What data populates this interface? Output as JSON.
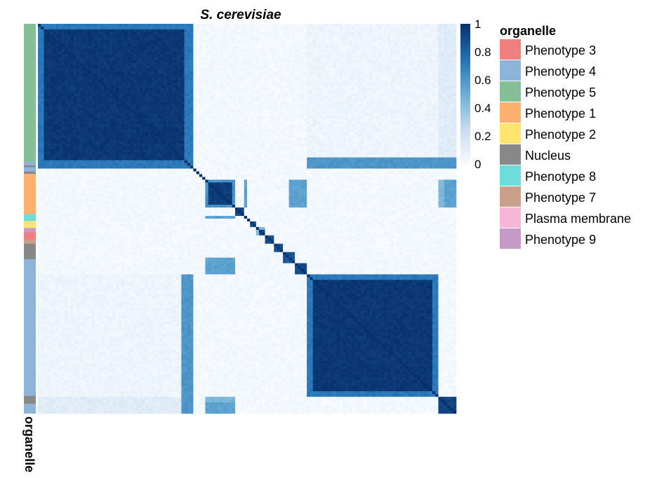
{
  "chart_data": {
    "type": "heatmap",
    "title": "S. cerevisiae",
    "color_scale": {
      "min": 0,
      "max": 1,
      "ticks": [
        {
          "value": 1,
          "label": "1"
        },
        {
          "value": 0.8,
          "label": "0.8"
        },
        {
          "value": 0.6,
          "label": "0.6"
        },
        {
          "value": 0.4,
          "label": "0.4"
        },
        {
          "value": 0.2,
          "label": "0.2"
        },
        {
          "value": 0,
          "label": "0"
        }
      ],
      "low_color": "#f7fbff",
      "high_color": "#08306b"
    },
    "annotation": {
      "name": "organelle",
      "legend": [
        {
          "label": "Phenotype 3",
          "color": "#f08080"
        },
        {
          "label": "Phenotype 4",
          "color": "#8fb4d9"
        },
        {
          "label": "Phenotype 5",
          "color": "#85bf95"
        },
        {
          "label": "Phenotype 1",
          "color": "#ffb06f"
        },
        {
          "label": "Phenotype 2",
          "color": "#ffe470"
        },
        {
          "label": "Nucleus",
          "color": "#888888"
        },
        {
          "label": "Phenotype 8",
          "color": "#6fdcdc"
        },
        {
          "label": "Phenotype 7",
          "color": "#c9a08a"
        },
        {
          "label": "Plasma membrane",
          "color": "#f6b6d8"
        },
        {
          "label": "Phenotype 9",
          "color": "#c59ac9"
        }
      ],
      "row_groups": [
        {
          "label": "Phenotype 5",
          "fraction": 0.354
        },
        {
          "label": "Phenotype 4",
          "fraction": 0.009
        },
        {
          "label": "Nucleus",
          "fraction": 0.005
        },
        {
          "label": "Phenotype 4",
          "fraction": 0.011
        },
        {
          "label": "Nucleus",
          "fraction": 0.006
        },
        {
          "label": "Phenotype 1",
          "fraction": 0.103
        },
        {
          "label": "Phenotype 8",
          "fraction": 0.018
        },
        {
          "label": "Phenotype 2",
          "fraction": 0.018
        },
        {
          "label": "Phenotype 9",
          "fraction": 0.011
        },
        {
          "label": "Phenotype 3",
          "fraction": 0.02
        },
        {
          "label": "Phenotype 7",
          "fraction": 0.009
        },
        {
          "label": "Nucleus",
          "fraction": 0.04
        },
        {
          "label": "Phenotype 4",
          "fraction": 0.351
        },
        {
          "label": "Nucleus",
          "fraction": 0.02
        },
        {
          "label": "Phenotype 4",
          "fraction": 0.025
        }
      ]
    },
    "blocks": [
      {
        "start": 0.0,
        "end": 0.368,
        "value": 0.97,
        "edge": 0.72
      },
      {
        "start": 0.402,
        "end": 0.468,
        "value": 0.95,
        "edge": 0.6
      },
      {
        "start": 0.47,
        "end": 0.495,
        "value": 0.92,
        "edge": 0.5
      },
      {
        "start": 0.505,
        "end": 0.525,
        "value": 0.9,
        "edge": 0.45
      },
      {
        "start": 0.525,
        "end": 0.545,
        "value": 0.9,
        "edge": 0.45
      },
      {
        "start": 0.545,
        "end": 0.565,
        "value": 0.88,
        "edge": 0.4
      },
      {
        "start": 0.565,
        "end": 0.585,
        "value": 0.88,
        "edge": 0.4
      },
      {
        "start": 0.585,
        "end": 0.615,
        "value": 0.85,
        "edge": 0.4
      },
      {
        "start": 0.615,
        "end": 0.645,
        "value": 0.9,
        "edge": 0.55
      },
      {
        "start": 0.645,
        "end": 0.955,
        "value": 0.97,
        "edge": 0.72
      },
      {
        "start": 0.955,
        "end": 1.0,
        "value": 0.92,
        "edge": 0.55
      }
    ],
    "off_diagonal": [
      {
        "rows": [
          0.0,
          0.368
        ],
        "cols": [
          0.645,
          1.0
        ],
        "value": 0.05
      },
      {
        "rows": [
          0.345,
          0.368
        ],
        "cols": [
          0.645,
          1.0
        ],
        "value": 0.6
      },
      {
        "rows": [
          0.402,
          0.468
        ],
        "cols": [
          0.615,
          0.645
        ],
        "value": 0.55
      },
      {
        "rows": [
          0.402,
          0.468
        ],
        "cols": [
          0.97,
          1.0
        ],
        "value": 0.55
      },
      {
        "rows": [
          0.402,
          0.468
        ],
        "cols": [
          0.495,
          0.5
        ],
        "value": 0.55
      },
      {
        "rows": [
          0.402,
          0.468
        ],
        "cols": [
          0.435,
          0.468
        ],
        "value": 0.62
      },
      {
        "rows": [
          0.6,
          0.645
        ],
        "cols": [
          0.402,
          0.468
        ],
        "value": 0.55
      },
      {
        "rows": [
          0.955,
          1.0
        ],
        "cols": [
          0.0,
          0.368
        ],
        "value": 0.12
      },
      {
        "rows": [
          0.955,
          1.0
        ],
        "cols": [
          0.402,
          0.468
        ],
        "value": 0.45
      }
    ]
  }
}
